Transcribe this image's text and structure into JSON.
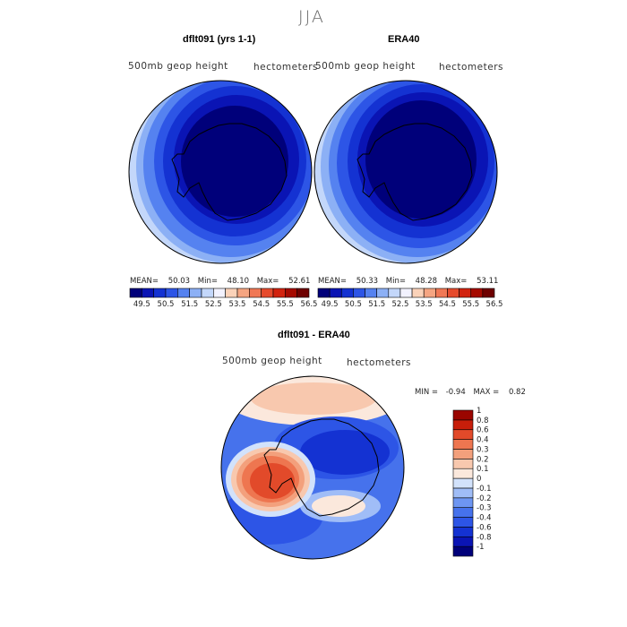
{
  "page_title": "JJA",
  "panels": [
    {
      "title": "dflt091 (yrs 1-1)",
      "subtitle_left": "500mb geop height",
      "subtitle_right": "hectometers",
      "stats": {
        "mean_label": "MEAN=",
        "mean": "50.03",
        "min_label": "Min=",
        "min": "48.10",
        "max_label": "Max=",
        "max": "52.61"
      }
    },
    {
      "title": "ERA40",
      "subtitle_left": "500mb geop height",
      "subtitle_right": "hectometers",
      "stats": {
        "mean_label": "MEAN=",
        "mean": "50.33",
        "min_label": "Min=",
        "min": "48.28",
        "max_label": "Max=",
        "max": "53.11"
      }
    },
    {
      "title": "dflt091 - ERA40",
      "subtitle_left": "500mb geop height",
      "subtitle_right": "hectometers",
      "stats": {
        "min_label": "MIN =",
        "min": "-0.94",
        "max_label": "MAX =",
        "max": "0.82"
      }
    }
  ],
  "chart_data": [
    {
      "type": "heatmap",
      "name": "dflt091 (yrs 1-1)",
      "projection": "south-polar-stereographic",
      "colorbar": {
        "orientation": "horizontal",
        "levels": [
          "49.5",
          "50.5",
          "51.5",
          "52.5",
          "53.5",
          "54.5",
          "55.5",
          "56.5"
        ],
        "colors": [
          "#00007a",
          "#0a14b4",
          "#1432d2",
          "#2d55e6",
          "#5582f0",
          "#8cb0f5",
          "#c3d7fa",
          "#f2f2ff",
          "#fad2b9",
          "#f5a582",
          "#f07855",
          "#e64b2d",
          "#d2230f",
          "#a50a00",
          "#6e0000"
        ]
      }
    },
    {
      "type": "heatmap",
      "name": "ERA40",
      "projection": "south-polar-stereographic",
      "colorbar": {
        "orientation": "horizontal",
        "levels": [
          "49.5",
          "50.5",
          "51.5",
          "52.5",
          "53.5",
          "54.5",
          "55.5",
          "56.5"
        ],
        "colors": [
          "#00007a",
          "#0a14b4",
          "#1432d2",
          "#2d55e6",
          "#5582f0",
          "#8cb0f5",
          "#c3d7fa",
          "#f2f2ff",
          "#fad2b9",
          "#f5a582",
          "#f07855",
          "#e64b2d",
          "#d2230f",
          "#a50a00",
          "#6e0000"
        ]
      }
    },
    {
      "type": "heatmap",
      "name": "dflt091 - ERA40",
      "projection": "south-polar-stereographic",
      "colorbar": {
        "orientation": "vertical",
        "levels": [
          "-1",
          "-0.8",
          "-0.6",
          "-0.4",
          "-0.3",
          "-0.2",
          "-0.1",
          "0",
          "0.1",
          "0.2",
          "0.3",
          "0.4",
          "0.6",
          "0.8",
          "1"
        ],
        "colors": [
          "#00007a",
          "#0a14b4",
          "#1432d2",
          "#2d55e6",
          "#4672ec",
          "#6e96f2",
          "#a0bdf7",
          "#d2e2fb",
          "#fbe8dc",
          "#f8c8ae",
          "#f3a07c",
          "#ee7650",
          "#e24a2a",
          "#c81e0a",
          "#9a0500"
        ]
      }
    }
  ]
}
